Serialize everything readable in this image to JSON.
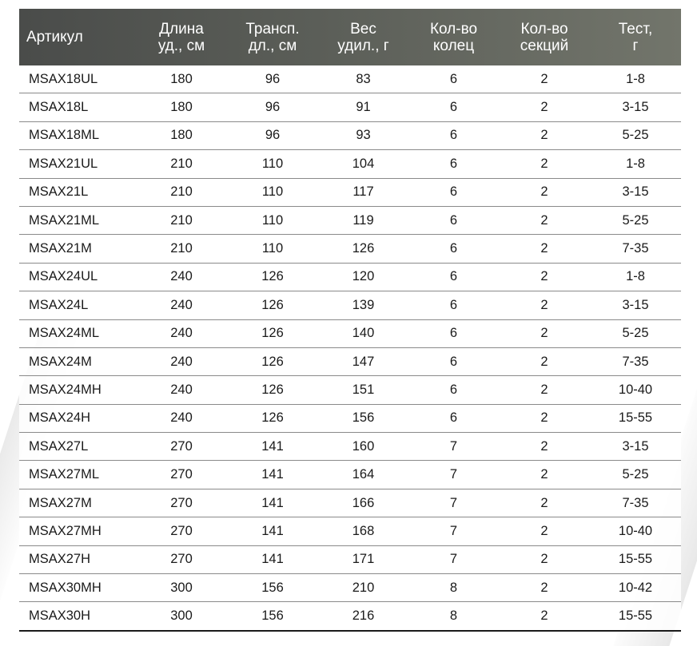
{
  "table": {
    "headers": [
      "Артикул",
      "Длина\nуд., см",
      "Трансп.\nдл., см",
      "Вес\nудил.,  г",
      "Кол-во\nколец",
      "Кол-во\nсекций",
      "Тест,\nг"
    ],
    "rows": [
      [
        "MSAX18UL",
        "180",
        "96",
        "83",
        "6",
        "2",
        "1-8"
      ],
      [
        "MSAX18L",
        "180",
        "96",
        "91",
        "6",
        "2",
        "3-15"
      ],
      [
        "MSAX18ML",
        "180",
        "96",
        "93",
        "6",
        "2",
        "5-25"
      ],
      [
        "MSAX21UL",
        "210",
        "110",
        "104",
        "6",
        "2",
        "1-8"
      ],
      [
        "MSAX21L",
        "210",
        "110",
        "117",
        "6",
        "2",
        "3-15"
      ],
      [
        "MSAX21ML",
        "210",
        "110",
        "119",
        "6",
        "2",
        "5-25"
      ],
      [
        "MSAX21M",
        "210",
        "110",
        "126",
        "6",
        "2",
        "7-35"
      ],
      [
        "MSAX24UL",
        "240",
        "126",
        "120",
        "6",
        "2",
        "1-8"
      ],
      [
        "MSAX24L",
        "240",
        "126",
        "139",
        "6",
        "2",
        "3-15"
      ],
      [
        "MSAX24ML",
        "240",
        "126",
        "140",
        "6",
        "2",
        "5-25"
      ],
      [
        "MSAX24M",
        "240",
        "126",
        "147",
        "6",
        "2",
        "7-35"
      ],
      [
        "MSAX24MH",
        "240",
        "126",
        "151",
        "6",
        "2",
        "10-40"
      ],
      [
        "MSAX24H",
        "240",
        "126",
        "156",
        "6",
        "2",
        "15-55"
      ],
      [
        "MSAX27L",
        "270",
        "141",
        "160",
        "7",
        "2",
        "3-15"
      ],
      [
        "MSAX27ML",
        "270",
        "141",
        "164",
        "7",
        "2",
        "5-25"
      ],
      [
        "MSAX27M",
        "270",
        "141",
        "166",
        "7",
        "2",
        "7-35"
      ],
      [
        "MSAX27MH",
        "270",
        "141",
        "168",
        "7",
        "2",
        "10-40"
      ],
      [
        "MSAX27H",
        "270",
        "141",
        "171",
        "7",
        "2",
        "15-55"
      ],
      [
        "MSAX30MH",
        "300",
        "156",
        "210",
        "8",
        "2",
        "10-42"
      ],
      [
        "MSAX30H",
        "300",
        "156",
        "216",
        "8",
        "2",
        "15-55"
      ]
    ]
  },
  "colors": {
    "header_bg_start": "#4a4c4a",
    "header_bg_end": "#72756b",
    "header_text": "#ffffff",
    "row_divider": "#8a8a8a",
    "text": "#1a1a1a"
  }
}
